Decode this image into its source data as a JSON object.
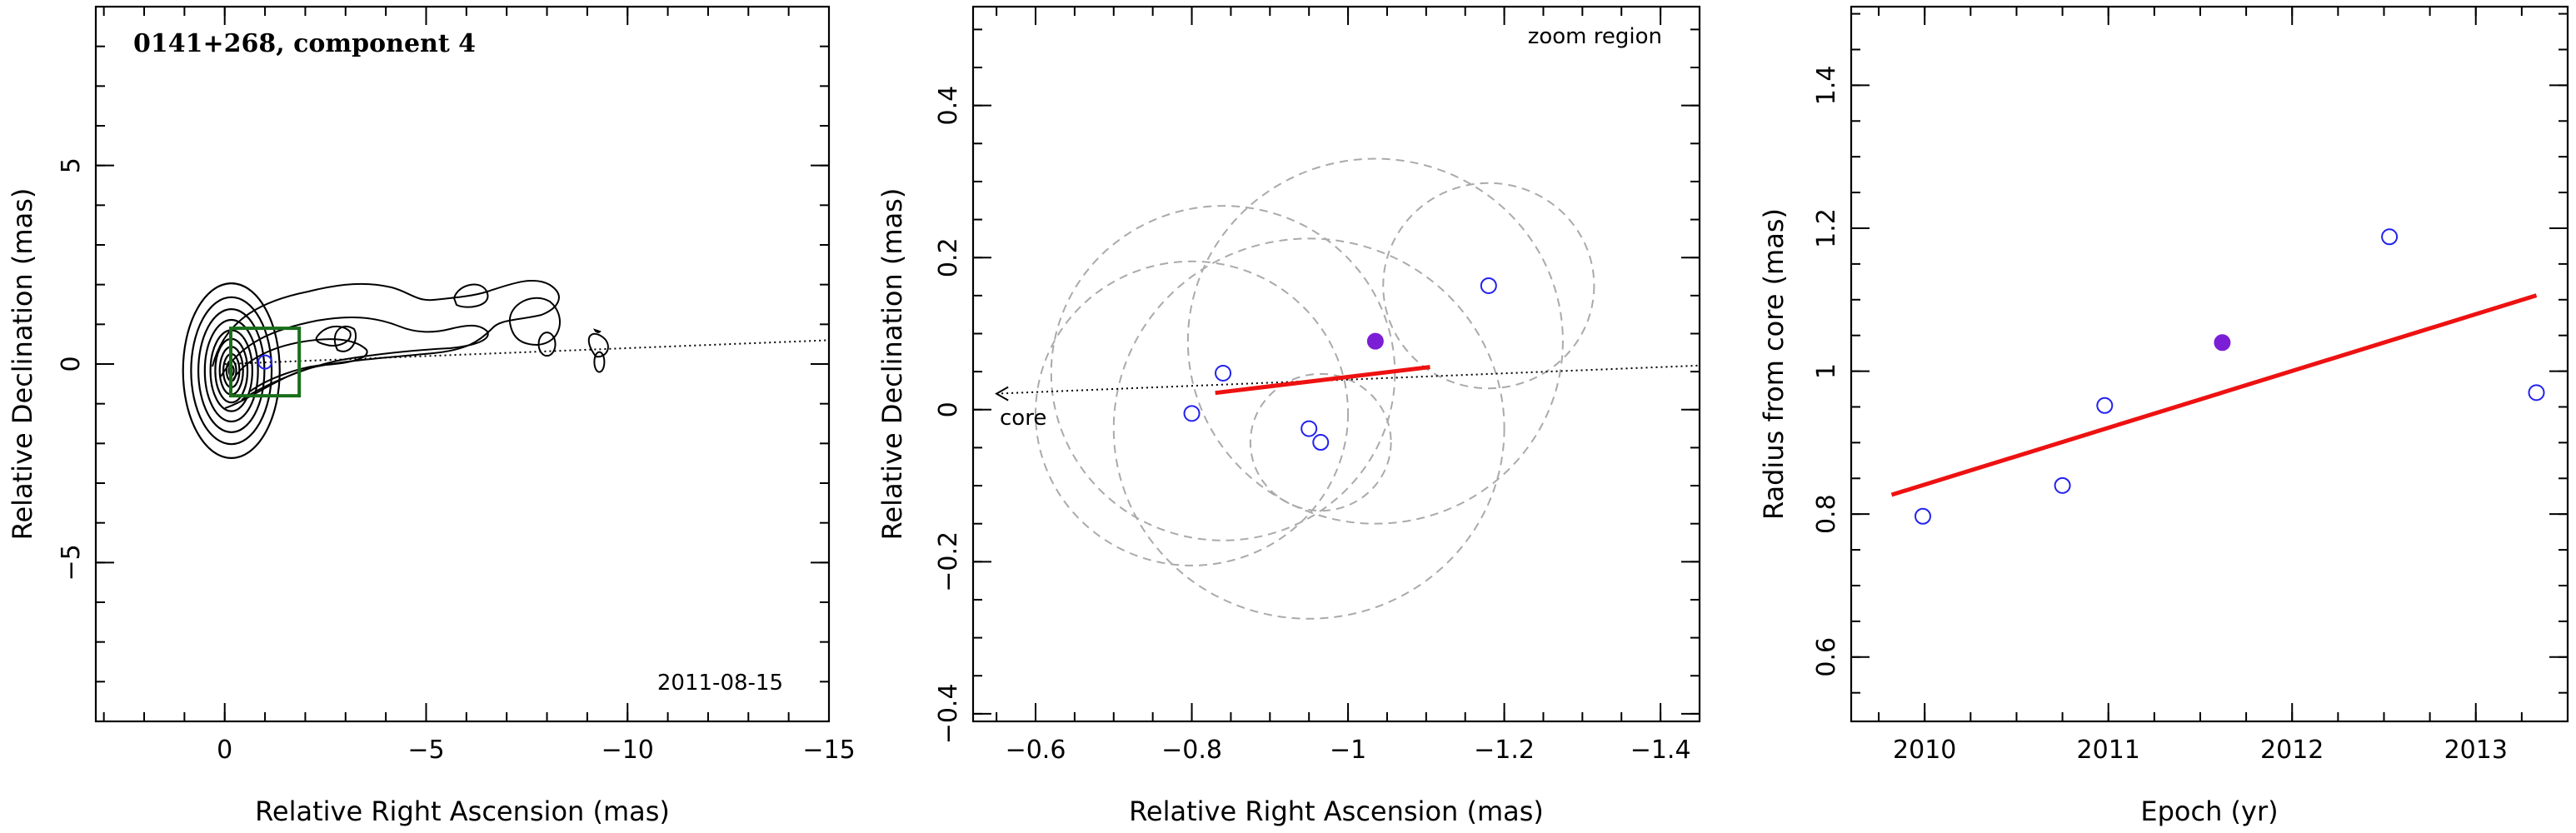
{
  "colors": {
    "fit_line": "#ee1111",
    "points": "#2222ee",
    "highlight_point": "#7a1fd6",
    "circles": "#aaaaaa",
    "box": "#1a6e1a",
    "contours": "#000000"
  },
  "chart_data": [
    {
      "type": "contour",
      "title": "0141+268, component 4",
      "xlabel": "Relative Right Ascension (mas)",
      "ylabel": "Relative Declination (mas)",
      "xlim": [
        3.2,
        -15
      ],
      "ylim": [
        -9,
        9
      ],
      "xticks": [
        0,
        -5,
        -10,
        -15
      ],
      "xtick_labels": [
        "0",
        "−5",
        "−10",
        "−15"
      ],
      "yticks": [
        -5,
        0,
        5
      ],
      "ytick_labels": [
        "−5",
        "0",
        "5"
      ],
      "date_label": "2011-08-15",
      "jet_axis": {
        "x": [
          0,
          -15
        ],
        "y": [
          0,
          0.6
        ]
      },
      "component_box": {
        "x": -1.0,
        "y": 0.05,
        "size": 0.85
      },
      "component_marker": {
        "x": -1.0,
        "y": 0.05
      }
    },
    {
      "type": "scatter",
      "title": "zoom region",
      "xlabel": "Relative Right Ascension (mas)",
      "ylabel": "Relative Declination (mas)",
      "xlim": [
        -0.52,
        -1.45
      ],
      "ylim": [
        -0.41,
        0.53
      ],
      "xticks": [
        -0.6,
        -0.8,
        -1.0,
        -1.2,
        -1.4
      ],
      "xtick_labels": [
        "−0.6",
        "−0.8",
        "−1",
        "−1.2",
        "−1.4"
      ],
      "yticks": [
        -0.4,
        -0.2,
        0,
        0.2,
        0.4
      ],
      "ytick_labels": [
        "−0.4",
        "−0.2",
        "0",
        "0.2",
        "0.4"
      ],
      "core_label": "core",
      "points": [
        {
          "x": -0.8,
          "y": -0.005,
          "highlight": false
        },
        {
          "x": -0.84,
          "y": 0.048,
          "highlight": false
        },
        {
          "x": -0.95,
          "y": -0.025,
          "highlight": false
        },
        {
          "x": -0.965,
          "y": -0.043,
          "highlight": false
        },
        {
          "x": -1.035,
          "y": 0.09,
          "highlight": true
        },
        {
          "x": -1.18,
          "y": 0.163,
          "highlight": false
        }
      ],
      "circles": [
        {
          "cx": -0.8,
          "cy": -0.005,
          "r": 0.2
        },
        {
          "cx": -0.84,
          "cy": 0.048,
          "r": 0.22
        },
        {
          "cx": -0.95,
          "cy": -0.025,
          "r": 0.25
        },
        {
          "cx": -0.965,
          "cy": -0.043,
          "r": 0.09
        },
        {
          "cx": -1.035,
          "cy": 0.09,
          "r": 0.24
        },
        {
          "cx": -1.18,
          "cy": 0.163,
          "r": 0.135
        }
      ],
      "fit_line": {
        "x": [
          -0.83,
          -1.105
        ],
        "y": [
          0.022,
          0.056
        ]
      },
      "jet_axis": {
        "x": [
          -0.55,
          -1.45
        ],
        "y": [
          0.021,
          0.058
        ]
      }
    },
    {
      "type": "scatter",
      "title": "",
      "xlabel": "Epoch (yr)",
      "ylabel": "Radius from core (mas)",
      "xlim": [
        2009.6,
        2013.5
      ],
      "ylim": [
        0.51,
        1.51
      ],
      "xticks": [
        2010,
        2011,
        2012,
        2013
      ],
      "xtick_labels": [
        "2010",
        "2011",
        "2012",
        "2013"
      ],
      "yticks": [
        0.6,
        0.8,
        1.0,
        1.2,
        1.4
      ],
      "ytick_labels": [
        "0.6",
        "0.8",
        "1",
        "1.2",
        "1.4"
      ],
      "points": [
        {
          "x": 2009.99,
          "y": 0.797,
          "highlight": false
        },
        {
          "x": 2010.75,
          "y": 0.84,
          "highlight": false
        },
        {
          "x": 2010.98,
          "y": 0.952,
          "highlight": false
        },
        {
          "x": 2011.62,
          "y": 1.04,
          "highlight": true
        },
        {
          "x": 2012.53,
          "y": 1.188,
          "highlight": false
        },
        {
          "x": 2013.33,
          "y": 0.97,
          "highlight": false
        }
      ],
      "fit_line": {
        "x": [
          2009.82,
          2013.33
        ],
        "y": [
          0.827,
          1.106
        ]
      }
    }
  ]
}
